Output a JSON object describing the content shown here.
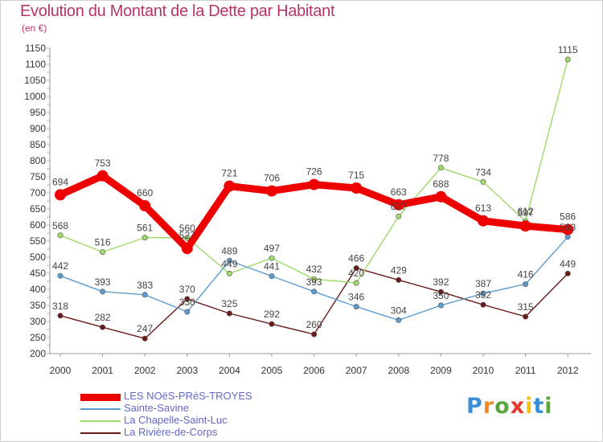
{
  "header": {
    "title": "Evolution du Montant de la Dette par Habitant",
    "subtitle": "(en €)"
  },
  "brand": {
    "letters": [
      "P",
      "r",
      "o",
      "x",
      "i",
      "t",
      "i"
    ],
    "colors": [
      "#3a8fd6",
      "#f08a24",
      "#5aa83c",
      "#e23b2e",
      "#f4c20d",
      "#3a8fd6",
      "#5aa83c"
    ]
  },
  "chart_data": {
    "type": "line",
    "x": [
      "2000",
      "2001",
      "2002",
      "2003",
      "2004",
      "2005",
      "2006",
      "2007",
      "2008",
      "2009",
      "2010",
      "2011",
      "2012"
    ],
    "ylim": [
      200,
      1150
    ],
    "yticks": [
      200,
      250,
      300,
      350,
      400,
      450,
      500,
      550,
      600,
      650,
      700,
      750,
      800,
      850,
      900,
      950,
      1000,
      1050,
      1100,
      1150
    ],
    "grid": false,
    "legend_position": "bottom-left",
    "series": [
      {
        "name": "LES NOëS-PRèS-TROYES",
        "color": "#ee0000",
        "values": [
          694,
          753,
          660,
          527,
          721,
          706,
          726,
          715,
          663,
          688,
          613,
          597,
          586
        ]
      },
      {
        "name": "Sainte-Savine",
        "color": "#5d9ccf",
        "values": [
          442,
          393,
          383,
          330,
          489,
          441,
          393,
          346,
          304,
          350,
          387,
          416,
          563
        ]
      },
      {
        "name": "La Chapelle-Saint-Luc",
        "color": "#9edb6a",
        "values": [
          568,
          516,
          561,
          560,
          449,
          497,
          432,
          420,
          627,
          778,
          734,
          612,
          1115
        ]
      },
      {
        "name": "La Rivière-de-Corps",
        "color": "#6b1a1a",
        "values": [
          318,
          282,
          247,
          370,
          325,
          292,
          260,
          466,
          429,
          392,
          352,
          315,
          449
        ]
      }
    ]
  }
}
